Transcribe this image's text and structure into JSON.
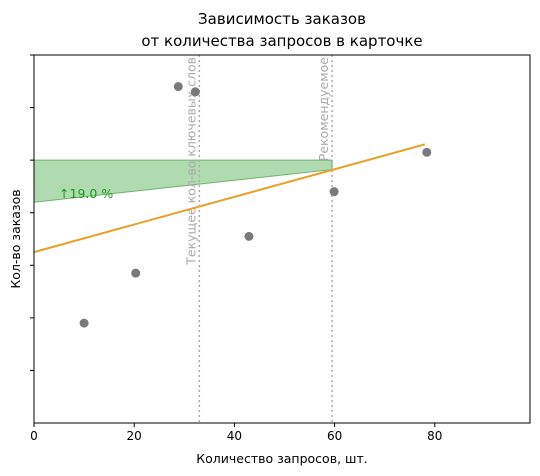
{
  "chart_data": {
    "type": "scatter",
    "title_line1": "Зависимость заказов",
    "title_line2": "от количества запросов в карточке",
    "xlabel": "Количество запросов, шт.",
    "ylabel": "Кол-во заказов",
    "xlim": [
      0,
      99
    ],
    "ylim": [
      0,
      7
    ],
    "x_ticks": [
      0,
      20,
      40,
      60,
      80
    ],
    "x_tick_labels": [
      "0",
      "20",
      "40",
      "60",
      "80"
    ],
    "y_ticks": [
      1,
      2,
      3,
      4,
      5,
      6,
      7
    ],
    "grid": false,
    "points": [
      {
        "x": 10,
        "y": 1.9
      },
      {
        "x": 20.3,
        "y": 2.85
      },
      {
        "x": 28.8,
        "y": 6.4
      },
      {
        "x": 32.2,
        "y": 6.3
      },
      {
        "x": 42.9,
        "y": 3.55
      },
      {
        "x": 59.9,
        "y": 4.4
      },
      {
        "x": 78.4,
        "y": 5.15
      }
    ],
    "trend_line": {
      "x": [
        0,
        78
      ],
      "y": [
        3.25,
        5.3
      ]
    },
    "vlines": [
      {
        "x": 33,
        "label": "Текущее кол-во ключевых слов"
      },
      {
        "x": 59.5,
        "label": "Рекомендуемое"
      }
    ],
    "band": {
      "x": [
        0,
        59.5
      ],
      "y_bottom": [
        4.2,
        4.2
      ],
      "y_top": [
        5.0,
        5.0
      ],
      "y_trend_at_right": 4.82
    },
    "annotation": {
      "text": "↑19.0 %",
      "x": 5,
      "y": 4.28
    },
    "colors": {
      "points": "#7a7a7a",
      "trend": "#e8a22a",
      "vline": "#aaaaaa",
      "band_fill": "#8fcb8f",
      "annotation": "#1a9a1a"
    }
  }
}
